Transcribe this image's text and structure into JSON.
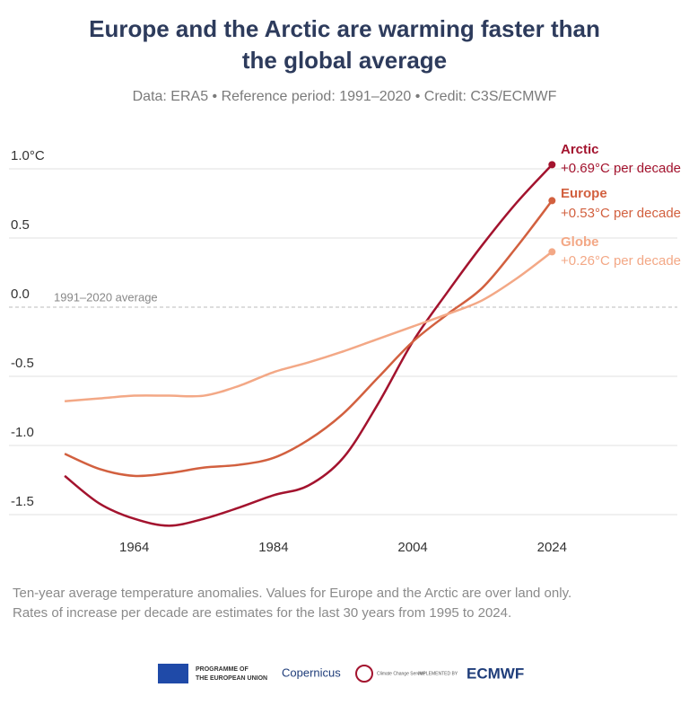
{
  "chart_data": {
    "type": "line",
    "title": [
      "Europe and the Arctic are warming faster than",
      "the global average"
    ],
    "subtitle": "Data: ERA5 • Reference period: 1991–2020 • Credit: C3S/ECMWF",
    "annotation": "1991–2020 average",
    "footnote": [
      "Ten-year average temperature anomalies. Values for Europe and the Arctic are over land only.",
      "Rates of increase per decade are estimates for the last 30 years from 1995 to 2024."
    ],
    "x": [
      1954,
      1959,
      1964,
      1969,
      1974,
      1979,
      1984,
      1989,
      1994,
      1999,
      2004,
      2009,
      2014,
      2019,
      2024
    ],
    "xlim": [
      1946,
      2042
    ],
    "xticks": [
      1964,
      1984,
      2004,
      2024
    ],
    "ylim": [
      -1.65,
      1.1
    ],
    "yticks": [
      {
        "value": 1,
        "label": "1.0°C"
      },
      0.5,
      {
        "value": 0,
        "label": "0.0"
      },
      -0.5,
      {
        "value": -1,
        "label": "-1.0"
      },
      -1.5
    ],
    "grid": true,
    "series": [
      {
        "name": "Arctic",
        "rate_label": "+0.69°C per decade",
        "color": "#a3132e",
        "values": [
          -1.22,
          -1.42,
          -1.53,
          -1.58,
          -1.53,
          -1.45,
          -1.36,
          -1.29,
          -1.09,
          -0.7,
          -0.25,
          0.11,
          0.45,
          0.76,
          1.03
        ]
      },
      {
        "name": "Europe",
        "rate_label": "+0.53°C per decade",
        "color": "#d2603f",
        "values": [
          -1.06,
          -1.17,
          -1.22,
          -1.2,
          -1.16,
          -1.14,
          -1.09,
          -0.96,
          -0.77,
          -0.51,
          -0.25,
          -0.05,
          0.14,
          0.44,
          0.77
        ]
      },
      {
        "name": "Globe",
        "rate_label": "+0.26°C per decade",
        "color": "#f3a886",
        "values": [
          -0.68,
          -0.66,
          -0.64,
          -0.64,
          -0.64,
          -0.57,
          -0.47,
          -0.4,
          -0.32,
          -0.23,
          -0.14,
          -0.05,
          0.05,
          0.21,
          0.4
        ]
      }
    ],
    "logos": [
      "PROGRAMME OF",
      "THE EUROPEAN UNION",
      "Copernicus",
      "Climate Change Service",
      "IMPLEMENTED BY",
      "ECMWF"
    ]
  }
}
